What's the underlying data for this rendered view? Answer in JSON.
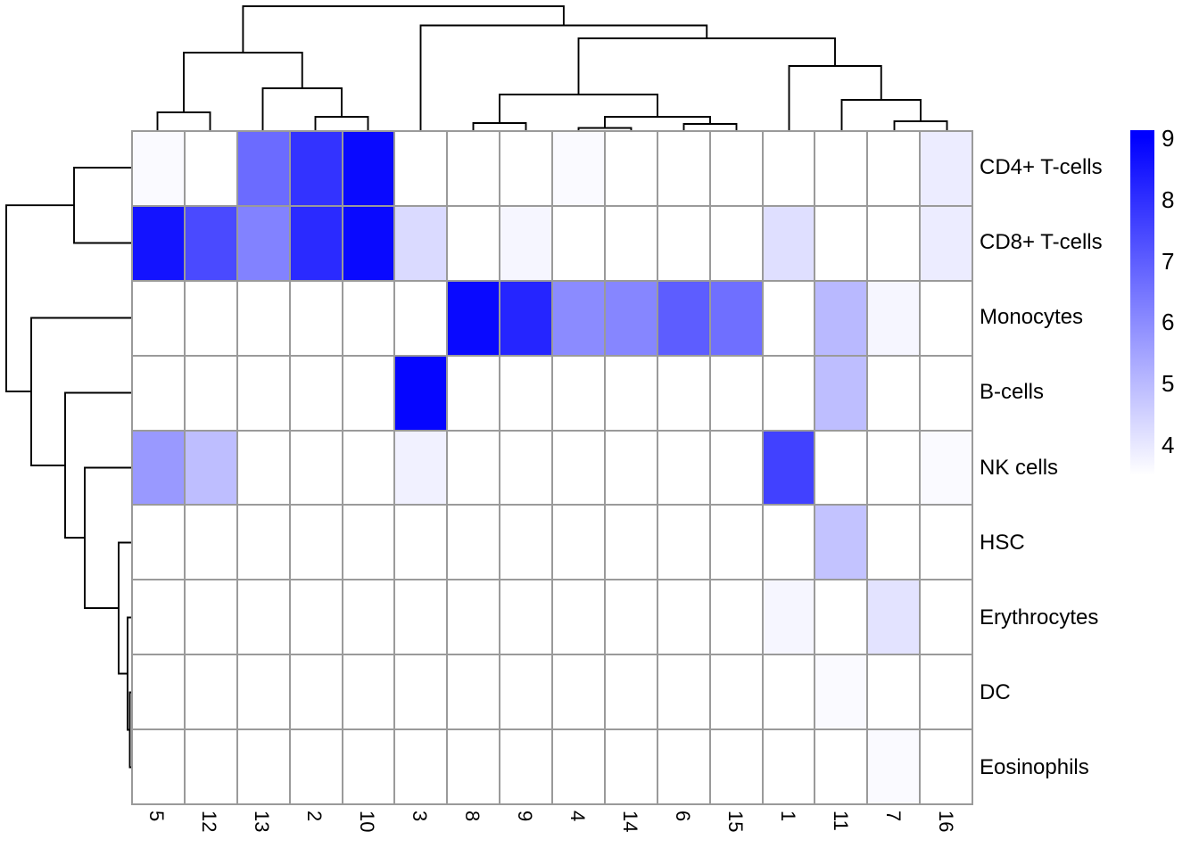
{
  "chart_data": {
    "type": "heatmap",
    "title": "",
    "columns": [
      "5",
      "12",
      "13",
      "2",
      "10",
      "3",
      "8",
      "9",
      "4",
      "14",
      "6",
      "15",
      "1",
      "11",
      "7",
      "16"
    ],
    "rows": [
      "CD4+ T-cells",
      "CD8+ T-cells",
      "Monocytes",
      "B-cells",
      "NK cells",
      "HSC",
      "Erythrocytes",
      "DC",
      "Eosinophils"
    ],
    "values": [
      [
        3.6,
        null,
        6.7,
        7.9,
        8.8,
        null,
        null,
        null,
        3.6,
        null,
        null,
        null,
        null,
        null,
        null,
        3.9
      ],
      [
        8.6,
        7.4,
        6.2,
        8.1,
        8.8,
        4.3,
        null,
        3.7,
        null,
        null,
        null,
        null,
        4.2,
        null,
        null,
        3.9
      ],
      [
        null,
        null,
        null,
        null,
        null,
        null,
        8.8,
        8.2,
        6.0,
        6.1,
        7.0,
        6.6,
        null,
        5.0,
        3.7,
        null
      ],
      [
        null,
        null,
        null,
        null,
        null,
        8.9,
        null,
        null,
        null,
        null,
        null,
        null,
        null,
        4.9,
        null,
        null
      ],
      [
        5.7,
        4.9,
        null,
        null,
        null,
        3.8,
        null,
        null,
        null,
        null,
        null,
        null,
        7.6,
        null,
        null,
        3.6
      ],
      [
        null,
        null,
        null,
        null,
        null,
        null,
        null,
        null,
        null,
        null,
        null,
        null,
        null,
        4.8,
        null,
        null
      ],
      [
        null,
        null,
        null,
        null,
        null,
        null,
        null,
        null,
        null,
        null,
        null,
        null,
        3.7,
        null,
        4.1,
        null
      ],
      [
        null,
        null,
        null,
        null,
        null,
        null,
        null,
        null,
        null,
        null,
        null,
        null,
        null,
        3.6,
        null,
        null
      ],
      [
        null,
        null,
        null,
        null,
        null,
        null,
        null,
        null,
        null,
        null,
        null,
        null,
        null,
        null,
        3.6,
        null
      ]
    ],
    "color_scale": {
      "min": 3.5,
      "max": 9,
      "low": "#ffffff",
      "high": "#0000ff"
    },
    "legend_ticks": [
      "9",
      "8",
      "7",
      "6",
      "5",
      "4"
    ],
    "grid_color": "#9a9a9a",
    "dendrogram_line_color": "#000000",
    "col_dendrogram_merges": [
      [
        176.5,
        146,
        235.5,
        146,
        126
      ],
      [
        353.5,
        146,
        412.5,
        146,
        131
      ],
      [
        294.5,
        146,
        383,
        131,
        99
      ],
      [
        206,
        126,
        338.75,
        99,
        59
      ],
      [
        530.5,
        146,
        589.5,
        146,
        138
      ],
      [
        648.5,
        146,
        707.5,
        146,
        143.5
      ],
      [
        766.5,
        146,
        825.5,
        146,
        139
      ],
      [
        678,
        143.5,
        796,
        139,
        131
      ],
      [
        560,
        138,
        737,
        131,
        106
      ],
      [
        1002.5,
        146,
        1061.5,
        146,
        136
      ],
      [
        943.5,
        146,
        1032,
        136,
        112
      ],
      [
        884.5,
        146,
        987.75,
        112,
        74
      ],
      [
        648.5,
        106,
        936,
        74,
        43
      ],
      [
        471.5,
        146,
        792.25,
        43,
        28.5
      ],
      [
        272.4,
        59,
        631.9,
        28.5,
        7
      ]
    ],
    "row_dendrogram_merges": [
      [
        188,
        147,
        272.5,
        147,
        83
      ],
      [
        776.5,
        147,
        860.5,
        147,
        145.5
      ],
      [
        692.5,
        147,
        818.5,
        145.5,
        143
      ],
      [
        608.5,
        147,
        755.5,
        143,
        133
      ],
      [
        524.5,
        147,
        682,
        133,
        95
      ],
      [
        440.5,
        147,
        603,
        95,
        73
      ],
      [
        356.5,
        147,
        522,
        73,
        35
      ],
      [
        230.2,
        83,
        439,
        35,
        7
      ]
    ]
  }
}
